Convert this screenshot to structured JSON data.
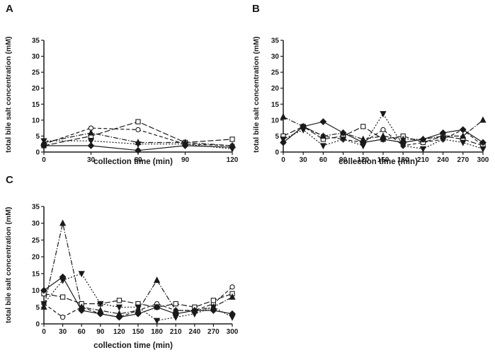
{
  "figure": {
    "background": "#ffffff",
    "ink": "#1a1a1a",
    "panel_labels": [
      "A",
      "B",
      "C"
    ]
  },
  "chart_data": [
    {
      "panel_label": "A",
      "type": "line",
      "title": "",
      "xlabel": "collection time (min)",
      "ylabel": "total bile salt concentration (mM)",
      "x": [
        0,
        30,
        60,
        90,
        120
      ],
      "xlim": [
        0,
        120
      ],
      "ylim": [
        0,
        35
      ],
      "xticks": [
        0,
        30,
        60,
        90,
        120
      ],
      "yticks": [
        0,
        5,
        10,
        15,
        20,
        25,
        30,
        35
      ],
      "grid": false,
      "legend": "none",
      "series": [
        {
          "name": "open-circle",
          "marker": "circle",
          "fill": "open",
          "dash": "5,3",
          "values": [
            2.5,
            7.5,
            7,
            2.5,
            2
          ]
        },
        {
          "name": "open-square",
          "marker": "square",
          "fill": "open",
          "dash": "8,3",
          "values": [
            2,
            5,
            9.5,
            3,
            4
          ]
        },
        {
          "name": "filled-triangle",
          "marker": "triangle-up",
          "fill": "solid",
          "dash": "7,2,1.5,2",
          "values": [
            3,
            6,
            3,
            3,
            2
          ]
        },
        {
          "name": "filled-inverted-triangle",
          "marker": "triangle-down",
          "fill": "solid",
          "dash": "2,2.2",
          "values": [
            3.5,
            3.5,
            2.5,
            2.5,
            1
          ]
        },
        {
          "name": "filled-diamond",
          "marker": "diamond",
          "fill": "solid",
          "dash": "",
          "values": [
            2,
            2,
            0.5,
            2,
            1.5
          ]
        }
      ]
    },
    {
      "panel_label": "B",
      "type": "line",
      "title": "",
      "xlabel": "collection time (min)",
      "ylabel": "total bile salt concentration (mM)",
      "x": [
        0,
        30,
        60,
        90,
        120,
        150,
        180,
        210,
        240,
        270,
        300
      ],
      "xlim": [
        0,
        300
      ],
      "ylim": [
        0,
        35
      ],
      "xticks": [
        0,
        30,
        60,
        90,
        120,
        150,
        180,
        210,
        240,
        270,
        300
      ],
      "yticks": [
        0,
        5,
        10,
        15,
        20,
        25,
        30,
        35
      ],
      "grid": false,
      "legend": "none",
      "series": [
        {
          "name": "open-circle",
          "marker": "circle",
          "fill": "open",
          "dash": "5,3",
          "values": [
            3,
            8,
            5,
            4,
            3,
            7,
            2,
            3,
            4,
            7,
            2
          ]
        },
        {
          "name": "open-square",
          "marker": "square",
          "fill": "open",
          "dash": "8,3",
          "values": [
            5,
            8,
            4,
            5,
            8,
            4,
            5,
            3,
            5,
            4,
            2
          ]
        },
        {
          "name": "filled-triangle",
          "marker": "triangle-up",
          "fill": "solid",
          "dash": "7,2,1.5,2",
          "values": [
            11,
            8,
            5,
            6,
            4,
            5,
            4,
            4,
            5,
            5,
            10
          ]
        },
        {
          "name": "filled-inverted-triangle",
          "marker": "triangle-down",
          "fill": "solid",
          "dash": "2,2.2",
          "values": [
            4,
            7,
            2,
            4,
            2,
            12,
            2,
            1,
            4,
            3,
            1
          ]
        },
        {
          "name": "filled-diamond",
          "marker": "diamond",
          "fill": "solid",
          "dash": "",
          "values": [
            3,
            8,
            9.5,
            6,
            3,
            4,
            3,
            4,
            6,
            7,
            3
          ]
        }
      ]
    },
    {
      "panel_label": "C",
      "type": "line",
      "title": "",
      "xlabel": "collection time (min)",
      "ylabel": "total bile salt concentration (mM)",
      "x": [
        0,
        30,
        60,
        90,
        120,
        150,
        180,
        210,
        240,
        270,
        300
      ],
      "xlim": [
        0,
        300
      ],
      "ylim": [
        0,
        35
      ],
      "xticks": [
        0,
        30,
        60,
        90,
        120,
        150,
        180,
        210,
        240,
        270,
        300
      ],
      "yticks": [
        0,
        5,
        10,
        15,
        20,
        25,
        30,
        35
      ],
      "grid": false,
      "legend": "none",
      "series": [
        {
          "name": "open-circle",
          "marker": "circle",
          "fill": "open",
          "dash": "5,3",
          "values": [
            6,
            2,
            5,
            3,
            2,
            4,
            6,
            4,
            4,
            6,
            11
          ]
        },
        {
          "name": "open-square",
          "marker": "square",
          "fill": "open",
          "dash": "8,3",
          "values": [
            9,
            8,
            6,
            6,
            7,
            6,
            5,
            6,
            5,
            7,
            9
          ]
        },
        {
          "name": "filled-triangle",
          "marker": "triangle-up",
          "fill": "solid",
          "dash": "7,2,1.5,2",
          "values": [
            5,
            30,
            5,
            4,
            3,
            4,
            13,
            4,
            4,
            5,
            8
          ]
        },
        {
          "name": "filled-inverted-triangle",
          "marker": "triangle-down",
          "fill": "solid",
          "dash": "2,2.2",
          "values": [
            6,
            13,
            15,
            6,
            5,
            5,
            1,
            2,
            3,
            5,
            2
          ]
        },
        {
          "name": "filled-diamond",
          "marker": "diamond",
          "fill": "solid",
          "dash": "",
          "values": [
            10,
            14,
            4,
            3,
            2,
            3,
            5,
            3,
            4,
            4,
            3
          ]
        }
      ]
    }
  ]
}
